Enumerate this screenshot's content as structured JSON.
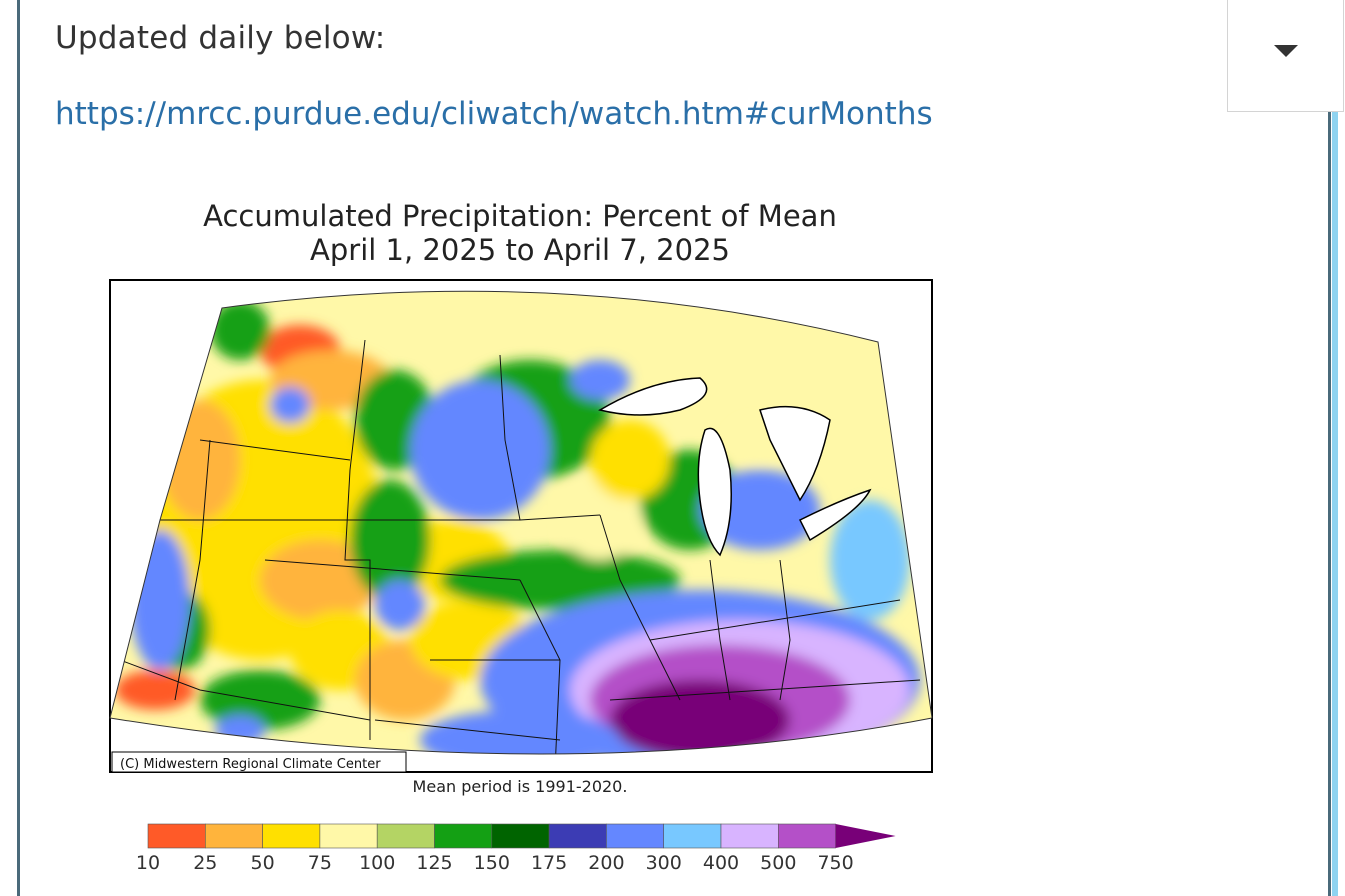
{
  "post": {
    "intro_text": "Updated daily below:",
    "link_text": "https://mrcc.purdue.edu/cliwatch/watch.htm#curMonths"
  },
  "dropdown": {
    "icon": "caret-down-icon"
  },
  "map": {
    "title_line1": "Accumulated Precipitation: Percent of Mean",
    "title_line2": "April 1, 2025 to April 7, 2025",
    "credit": "(C) Midwestern Regional Climate Center",
    "footnote": "Mean period is 1991-2020.",
    "legend": {
      "colors": [
        "#ff5a28",
        "#ffb43c",
        "#ffe000",
        "#fff8a8",
        "#b4d464",
        "#14a014",
        "#006400",
        "#3c3cb4",
        "#6487ff",
        "#78c8ff",
        "#d8b4ff",
        "#b450c8",
        "#780078"
      ],
      "labels": [
        "10",
        "25",
        "50",
        "75",
        "100",
        "125",
        "150",
        "175",
        "200",
        "300",
        "400",
        "500",
        "750"
      ]
    }
  }
}
